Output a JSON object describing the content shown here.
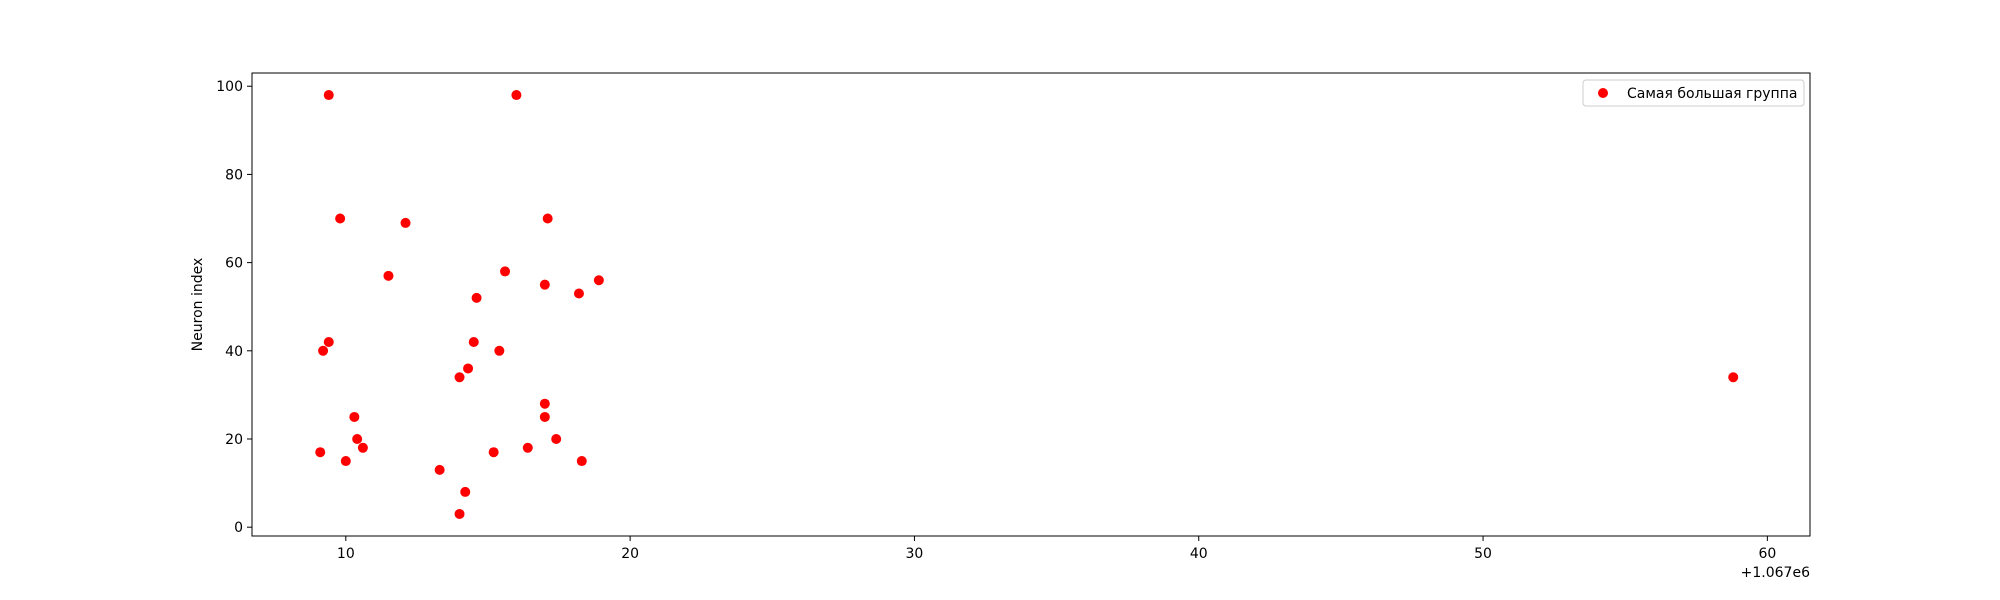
{
  "chart_data": {
    "type": "scatter",
    "title": "",
    "xlabel": "",
    "ylabel": "Neuron index",
    "x_offset_label": "+1.067e6",
    "xlim": [
      6.7,
      61.5
    ],
    "ylim": [
      -2,
      103
    ],
    "xticks": [
      10,
      20,
      30,
      40,
      50,
      60
    ],
    "yticks": [
      0,
      20,
      40,
      60,
      80,
      100
    ],
    "grid": false,
    "legend": {
      "position": "top-right",
      "entries": [
        "Самая большая группа"
      ]
    },
    "series": [
      {
        "name": "Самая большая группа",
        "color": "#ff0000",
        "marker": "circle",
        "points": [
          {
            "x": 9.1,
            "y": 17
          },
          {
            "x": 9.2,
            "y": 40
          },
          {
            "x": 9.4,
            "y": 42
          },
          {
            "x": 9.4,
            "y": 98
          },
          {
            "x": 9.8,
            "y": 70
          },
          {
            "x": 10.0,
            "y": 15
          },
          {
            "x": 10.3,
            "y": 25
          },
          {
            "x": 10.4,
            "y": 20
          },
          {
            "x": 10.6,
            "y": 18
          },
          {
            "x": 11.5,
            "y": 57
          },
          {
            "x": 12.1,
            "y": 69
          },
          {
            "x": 13.3,
            "y": 13
          },
          {
            "x": 14.0,
            "y": 34
          },
          {
            "x": 14.0,
            "y": 3
          },
          {
            "x": 14.2,
            "y": 8
          },
          {
            "x": 14.3,
            "y": 36
          },
          {
            "x": 14.5,
            "y": 42
          },
          {
            "x": 14.6,
            "y": 52
          },
          {
            "x": 15.2,
            "y": 17
          },
          {
            "x": 15.4,
            "y": 40
          },
          {
            "x": 15.6,
            "y": 58
          },
          {
            "x": 16.0,
            "y": 98
          },
          {
            "x": 16.4,
            "y": 18
          },
          {
            "x": 17.0,
            "y": 25
          },
          {
            "x": 17.0,
            "y": 55
          },
          {
            "x": 17.0,
            "y": 28
          },
          {
            "x": 17.1,
            "y": 70
          },
          {
            "x": 17.4,
            "y": 20
          },
          {
            "x": 18.2,
            "y": 53
          },
          {
            "x": 18.3,
            "y": 15
          },
          {
            "x": 18.9,
            "y": 56
          },
          {
            "x": 58.8,
            "y": 34
          }
        ]
      }
    ]
  }
}
